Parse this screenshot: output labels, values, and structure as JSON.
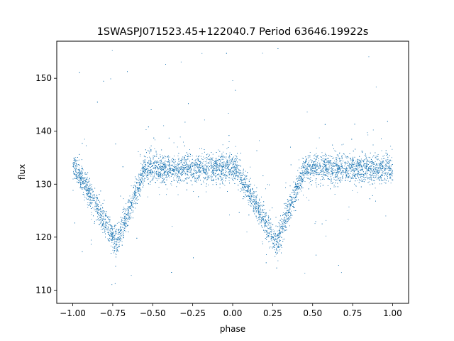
{
  "chart_data": {
    "type": "scatter",
    "title": "1SWASPJ071523.45+122040.7 Period 63646.19922s",
    "xlabel": "phase",
    "ylabel": "flux",
    "xlim": [
      -1.1,
      1.1
    ],
    "ylim": [
      107.5,
      157.0
    ],
    "xticks": [
      -1.0,
      -0.75,
      -0.5,
      -0.25,
      0.0,
      0.25,
      0.5,
      0.75,
      1.0
    ],
    "xtick_labels": [
      "−1.00",
      "−0.75",
      "−0.50",
      "−0.25",
      "0.00",
      "0.25",
      "0.50",
      "0.75",
      "1.00"
    ],
    "yticks": [
      110,
      120,
      130,
      140,
      150
    ],
    "ytick_labels": [
      "110",
      "120",
      "130",
      "140",
      "150"
    ],
    "grid": false,
    "legend": "none",
    "point_color": "#1f77b4",
    "series": [
      {
        "description_points": "folded light curve, phase -1 to 1, two cycles",
        "baseline_flux": 133.0,
        "baseline_scatter": 1.3,
        "eclipses": [
          {
            "phase_center": -0.73,
            "min_flux": 119.0,
            "ingress_phase": -0.98,
            "egress_phase": -0.55
          },
          {
            "phase_center": 0.27,
            "min_flux": 119.0,
            "ingress_phase": 0.02,
            "egress_phase": 0.45
          }
        ],
        "outlier_range": [
          110.0,
          156.0
        ]
      }
    ]
  }
}
